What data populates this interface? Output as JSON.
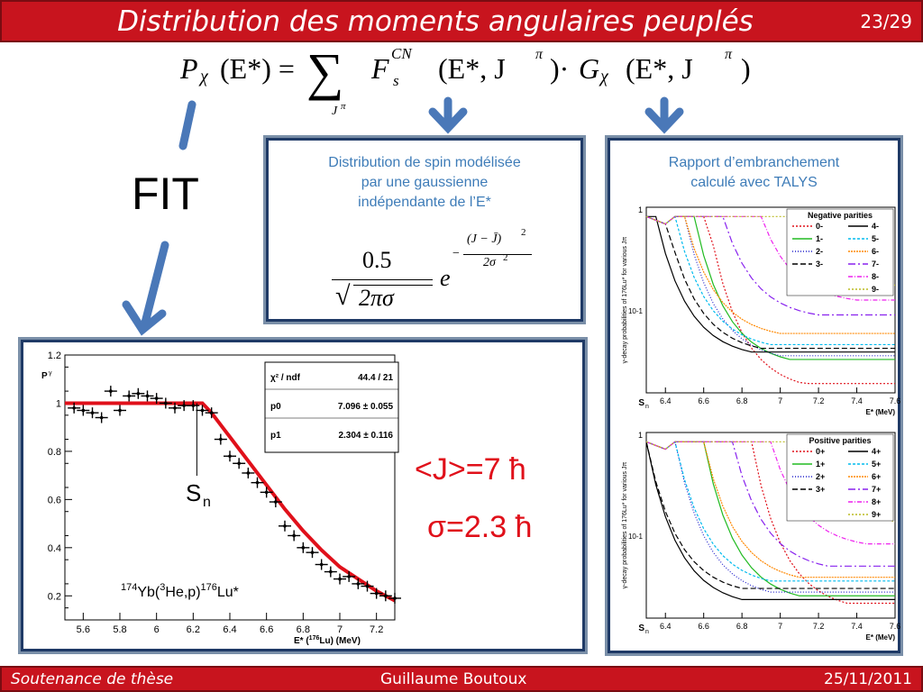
{
  "slide": {
    "title": "Distribution des moments angulaires peuplés",
    "page": "23/29"
  },
  "footer": {
    "left": "Soutenance de thèse",
    "center": "Guillaume Boutoux",
    "right": "25/11/2011"
  },
  "formula": {
    "lhs": "P",
    "lhs_sub": "χ",
    "lhs_arg": "(E*) =",
    "sum_sub": "J",
    "sum_sup": "π",
    "F": "F",
    "F_sub": "s",
    "F_sup": "CN",
    "F_arg": "(E*, J",
    "F_arg_sup": "π",
    "dot": ")·",
    "G": "G",
    "G_sub": "χ",
    "G_arg": "(E*, J",
    "G_arg_sup": "π",
    "close": ")"
  },
  "fit_label": "FIT",
  "spin_box": {
    "caption": [
      "Distribution de spin modélisée",
      "par une gaussienne",
      "indépendante de l’E*"
    ],
    "numerator": "0.5",
    "denominator": "2πσ",
    "e": "e",
    "exp_num": "(J − J̄)",
    "exp_num_sup": "2",
    "exp_den": "2σ",
    "exp_den_sup": "2",
    "minus": "−"
  },
  "talys_box": {
    "caption": [
      "Rapport d’embranchement",
      "calculé avec TALYS"
    ]
  },
  "results": {
    "J": "<J>=7 ħ",
    "sigma": "σ=2.3 ħ"
  },
  "fit_plot": {
    "ylabel": "P",
    "ylabel_sub": "γ",
    "xlabel": "E* (",
    "xlabel_sup": "176",
    "xlabel_rest": "Lu) (MeV)",
    "stats": [
      {
        "k": "χ² / ndf",
        "v": "44.4 / 21"
      },
      {
        "k": "p0",
        "v": "7.096 ± 0.055"
      },
      {
        "k": "p1",
        "v": "2.304 ± 0.116"
      }
    ],
    "sn": "S",
    "sn_sub": "n",
    "reaction": {
      "a": "174",
      "b": "Yb(",
      "c": "3",
      "d": "He,p)",
      "e": "176",
      "f": "Lu*"
    }
  },
  "chart_data": [
    {
      "type": "scatter",
      "xlim": [
        5.5,
        7.3
      ],
      "ylim": [
        0.1,
        1.2
      ],
      "xticks": [
        "5.6",
        "5.8",
        "6",
        "6.2",
        "6.4",
        "6.6",
        "6.8",
        "7",
        "7.2"
      ],
      "yticks": [
        "0.2",
        "0.4",
        "0.6",
        "0.8",
        "1",
        "1.2"
      ],
      "x": [
        5.55,
        5.6,
        5.65,
        5.7,
        5.75,
        5.8,
        5.85,
        5.9,
        5.95,
        6.0,
        6.05,
        6.1,
        6.15,
        6.2,
        6.25,
        6.3,
        6.35,
        6.4,
        6.45,
        6.5,
        6.55,
        6.6,
        6.65,
        6.7,
        6.75,
        6.8,
        6.85,
        6.9,
        6.95,
        7.0,
        7.05,
        7.1,
        7.15,
        7.2,
        7.25,
        7.3
      ],
      "y": [
        0.98,
        0.97,
        0.96,
        0.94,
        1.05,
        0.97,
        1.03,
        1.04,
        1.03,
        1.02,
        1.0,
        0.98,
        0.99,
        0.99,
        0.97,
        0.96,
        0.85,
        0.78,
        0.75,
        0.71,
        0.67,
        0.63,
        0.59,
        0.49,
        0.45,
        0.4,
        0.38,
        0.33,
        0.3,
        0.27,
        0.28,
        0.25,
        0.24,
        0.21,
        0.2,
        0.19
      ],
      "fit": {
        "x": [
          5.5,
          6.25,
          6.3,
          6.4,
          6.5,
          6.6,
          6.7,
          6.8,
          6.9,
          7.0,
          7.1,
          7.2,
          7.3
        ],
        "y": [
          1.0,
          1.0,
          0.96,
          0.86,
          0.76,
          0.66,
          0.56,
          0.47,
          0.39,
          0.32,
          0.27,
          0.22,
          0.18
        ]
      }
    },
    {
      "type": "line",
      "title": "Negative parities",
      "xlabel": "E* (MeV)",
      "ylabel": "γ-decay probabilities of 176Lu* for various Jπ",
      "x_start": "S",
      "x_start_sub": "n",
      "xticks": [
        "6.4",
        "6.6",
        "6.8",
        "7",
        "7.2",
        "7.4",
        "7.6"
      ],
      "yticks": [
        "1",
        "10-1"
      ],
      "legend": [
        "0-",
        "1-",
        "2-",
        "3-",
        "4-",
        "5-",
        "6-",
        "7-",
        "8-",
        "9-"
      ]
    },
    {
      "type": "line",
      "title": "Positive parities",
      "xlabel": "E* (MeV)",
      "ylabel": "γ-decay probabilities of 176Lu* for various Jπ",
      "x_start": "S",
      "x_start_sub": "n",
      "xticks": [
        "6.4",
        "6.6",
        "6.8",
        "7",
        "7.2",
        "7.4",
        "7.6"
      ],
      "yticks": [
        "1",
        "10-1"
      ],
      "legend": [
        "0+",
        "1+",
        "2+",
        "3+",
        "4+",
        "5+",
        "6+",
        "7+",
        "8+",
        "9+"
      ]
    }
  ],
  "colors": {
    "red": "#c8141e",
    "accent": "#3e7cb8",
    "arrow": "#4a78b8"
  }
}
